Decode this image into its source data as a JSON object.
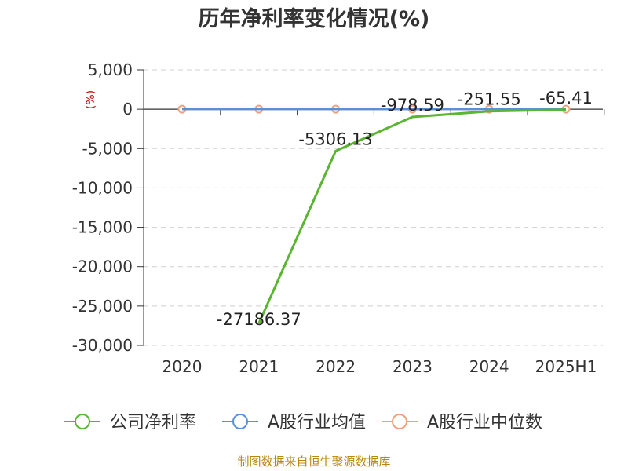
{
  "chart_data": {
    "type": "line",
    "title": "历年净利率变化情况(%)",
    "ylabel": "(%)",
    "categories": [
      "2020",
      "2021",
      "2022",
      "2023",
      "2024",
      "2025H1"
    ],
    "ylim": [
      -30000,
      5000
    ],
    "yticks": [
      5000,
      0,
      -5000,
      -10000,
      -15000,
      -20000,
      -25000,
      -30000
    ],
    "ytick_labels": [
      "5,000",
      "0",
      "-5,000",
      "-10,000",
      "-15,000",
      "-20,000",
      "-25,000",
      "-30,000"
    ],
    "grid": true,
    "legend_position": "bottom",
    "series": [
      {
        "name": "公司净利率",
        "color": "#5ab532",
        "values": [
          null,
          -27186.37,
          -5306.13,
          -978.59,
          -251.55,
          -65.41
        ],
        "labels": [
          "",
          "-27186.37",
          "-5306.13",
          "-978.59",
          "-251.55",
          "-65.41"
        ]
      },
      {
        "name": "A股行业均值",
        "color": "#5b8fd6",
        "values": [
          6,
          6,
          5,
          5,
          4,
          4
        ],
        "labels": [
          "",
          "",
          "",
          "",
          "",
          ""
        ]
      },
      {
        "name": "A股行业中位数",
        "color": "#f2a07b",
        "values": [
          8,
          8,
          7,
          6,
          5,
          5
        ],
        "labels": [
          "",
          "",
          "",
          "",
          "",
          ""
        ]
      }
    ],
    "source": "制图数据来自恒生聚源数据库"
  }
}
